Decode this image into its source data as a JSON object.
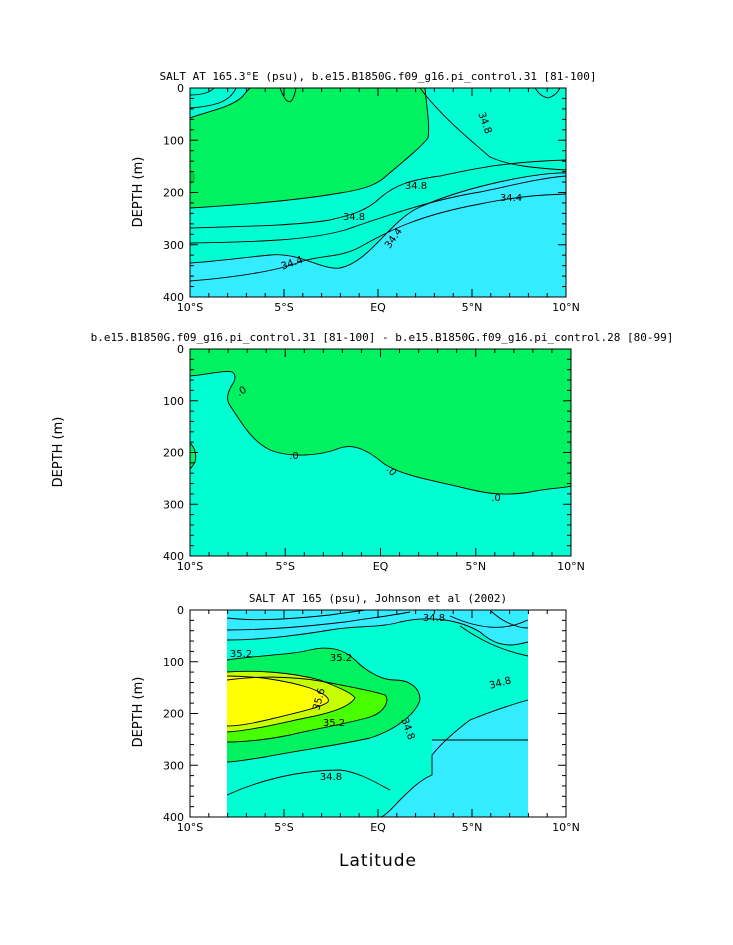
{
  "chart_data": [
    {
      "type": "contour",
      "title": "SALT AT 165.3°E (psu), b.e15.B1850G.f09_g16.pi_control.31 [81-100]",
      "ylabel": "DEPTH (m)",
      "xlabel": "",
      "x_ticks": [
        "10°S",
        "5°S",
        "EQ",
        "5°N",
        "10°N"
      ],
      "x_values": [
        -10,
        -5,
        0,
        5,
        10
      ],
      "y_ticks": [
        "0",
        "100",
        "200",
        "300",
        "400"
      ],
      "y_values": [
        0,
        100,
        200,
        300,
        400
      ],
      "xlim": [
        -10,
        10
      ],
      "ylim": [
        400,
        0
      ],
      "contour_labels": [
        "34.8",
        "34.8",
        "34.8",
        "34.4",
        "34.4",
        "34.4"
      ],
      "colors": {
        "low": "#33ecfe",
        "mid": "#00fed2",
        "high": "#00f260"
      }
    },
    {
      "type": "contour",
      "title": "b.e15.B1850G.f09_g16.pi_control.31 [81-100] - b.e15.B1850G.f09_g16.pi_control.28 [80-99]",
      "ylabel": "DEPTH (m)",
      "xlabel": "",
      "x_ticks": [
        "10°S",
        "5°S",
        "EQ",
        "5°N",
        "10°N"
      ],
      "x_values": [
        -10,
        -5,
        0,
        5,
        10
      ],
      "y_ticks": [
        "0",
        "100",
        "200",
        "300",
        "400"
      ],
      "y_values": [
        0,
        100,
        200,
        300,
        400
      ],
      "xlim": [
        -10,
        10
      ],
      "ylim": [
        400,
        0
      ],
      "contour_labels": [
        ".0",
        ".0",
        ".0",
        ".0"
      ],
      "colors": {
        "neg": "#00fed2",
        "pos": "#00f260"
      }
    },
    {
      "type": "contour",
      "title": "SALT AT 165 (psu), Johnson et al (2002)",
      "ylabel": "DEPTH (m)",
      "xlabel": "Latitude",
      "x_ticks": [
        "10°S",
        "5°S",
        "EQ",
        "5°N",
        "10°N"
      ],
      "x_values": [
        -10,
        -5,
        0,
        5,
        10
      ],
      "y_ticks": [
        "0",
        "100",
        "200",
        "300",
        "400"
      ],
      "y_values": [
        0,
        100,
        200,
        300,
        400
      ],
      "xlim": [
        -10,
        10
      ],
      "ylim": [
        400,
        0
      ],
      "data_extent_x": [
        -8,
        8
      ],
      "contour_labels": [
        "35.2",
        "35.2",
        "35.6",
        "35.2",
        "34.8",
        "34.8",
        "34.8",
        "34.8"
      ],
      "colors": {
        "low": "#33ecfe",
        "mid": "#00fed2",
        "c352": "#00f260",
        "c354": "#48ff00",
        "c356": "#c8ff00",
        "high": "#ffff00"
      }
    }
  ]
}
